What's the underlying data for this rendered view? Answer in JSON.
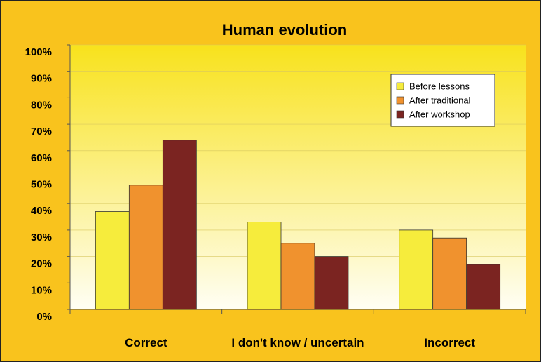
{
  "chart_data": {
    "type": "bar",
    "title": "Human evolution",
    "categories": [
      "Correct",
      "I don't know / uncertain",
      "Incorrect"
    ],
    "series": [
      {
        "name": "Before lessons",
        "color": "#f6ec3c",
        "values": [
          37,
          33,
          30
        ]
      },
      {
        "name": "After traditional",
        "color": "#f0922e",
        "values": [
          47,
          25,
          27
        ]
      },
      {
        "name": "After workshop",
        "color": "#7b2421",
        "values": [
          64,
          20,
          17
        ]
      }
    ],
    "ylim": [
      0,
      100
    ],
    "yticks": [
      {
        "value": 0,
        "label": "0%"
      },
      {
        "value": 10,
        "label": "10%"
      },
      {
        "value": 20,
        "label": "20%"
      },
      {
        "value": 30,
        "label": "30%"
      },
      {
        "value": 40,
        "label": "40%"
      },
      {
        "value": 50,
        "label": "50%"
      },
      {
        "value": 60,
        "label": "60%"
      },
      {
        "value": 70,
        "label": "70%"
      },
      {
        "value": 80,
        "label": "80%"
      },
      {
        "value": 90,
        "label": "90%"
      },
      {
        "value": 100,
        "label": "100%"
      }
    ],
    "grid": true,
    "legend": "top-right"
  }
}
